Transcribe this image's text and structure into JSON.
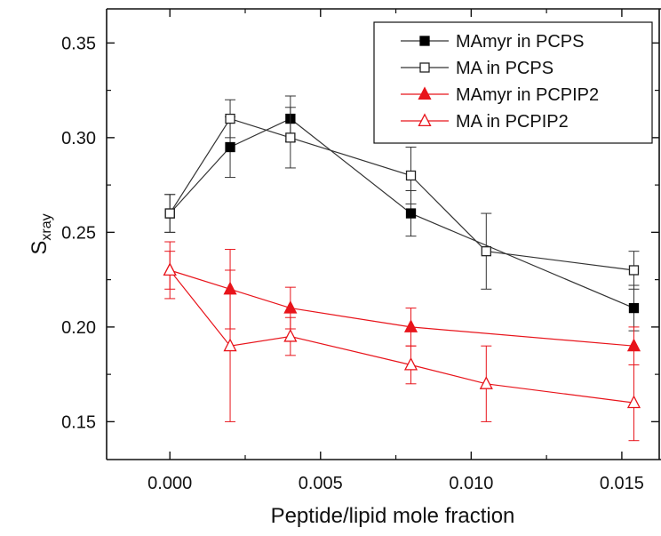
{
  "chart_data": {
    "type": "line",
    "title": "",
    "xlabel": "Peptide/lipid mole fraction",
    "ylabel": {
      "main": "S",
      "sub": "xray"
    },
    "xlim": [
      -0.0021,
      0.0163
    ],
    "ylim": [
      0.13,
      0.368
    ],
    "x_ticks": [
      {
        "value": 0.0,
        "label": "0.000"
      },
      {
        "value": 0.005,
        "label": "0.005"
      },
      {
        "value": 0.01,
        "label": "0.010"
      },
      {
        "value": 0.015,
        "label": "0.015"
      }
    ],
    "y_ticks": [
      {
        "value": 0.15,
        "label": "0.15"
      },
      {
        "value": 0.2,
        "label": "0.20"
      },
      {
        "value": 0.25,
        "label": "0.25"
      },
      {
        "value": 0.3,
        "label": "0.30"
      },
      {
        "value": 0.35,
        "label": "0.35"
      }
    ],
    "legend_position": "top-right",
    "series": [
      {
        "name": "MAmyr in PCPS",
        "color": "#333333",
        "marker": "square-filled",
        "points": [
          {
            "x": 0.0,
            "y": 0.26,
            "err": 0.01
          },
          {
            "x": 0.002,
            "y": 0.295,
            "err": 0.016
          },
          {
            "x": 0.004,
            "y": 0.31,
            "err": 0.012
          },
          {
            "x": 0.008,
            "y": 0.26,
            "err": 0.012
          },
          {
            "x": 0.0154,
            "y": 0.21,
            "err": 0.012
          }
        ]
      },
      {
        "name": "MA in PCPS",
        "color": "#333333",
        "marker": "square-open",
        "points": [
          {
            "x": 0.0,
            "y": 0.26,
            "err": 0.01
          },
          {
            "x": 0.002,
            "y": 0.31,
            "err": 0.01
          },
          {
            "x": 0.004,
            "y": 0.3,
            "err": 0.016
          },
          {
            "x": 0.008,
            "y": 0.28,
            "err": 0.015
          },
          {
            "x": 0.0105,
            "y": 0.24,
            "err": 0.02
          },
          {
            "x": 0.0154,
            "y": 0.23,
            "err": 0.01
          }
        ]
      },
      {
        "name": "MAmyr in PCPIP2",
        "color": "#e8141b",
        "marker": "triangle-filled",
        "points": [
          {
            "x": 0.0,
            "y": 0.23,
            "err": 0.015
          },
          {
            "x": 0.002,
            "y": 0.22,
            "err": 0.021
          },
          {
            "x": 0.004,
            "y": 0.21,
            "err": 0.011
          },
          {
            "x": 0.008,
            "y": 0.2,
            "err": 0.01
          },
          {
            "x": 0.0154,
            "y": 0.19,
            "err": 0.01
          }
        ]
      },
      {
        "name": "MA in PCPIP2",
        "color": "#e8141b",
        "marker": "triangle-open",
        "points": [
          {
            "x": 0.0,
            "y": 0.23,
            "err": 0.01
          },
          {
            "x": 0.002,
            "y": 0.19,
            "err": 0.04
          },
          {
            "x": 0.004,
            "y": 0.195,
            "err": 0.01
          },
          {
            "x": 0.008,
            "y": 0.18,
            "err": 0.01
          },
          {
            "x": 0.0105,
            "y": 0.17,
            "err": 0.02
          },
          {
            "x": 0.0154,
            "y": 0.16,
            "err": 0.02
          }
        ]
      }
    ]
  }
}
